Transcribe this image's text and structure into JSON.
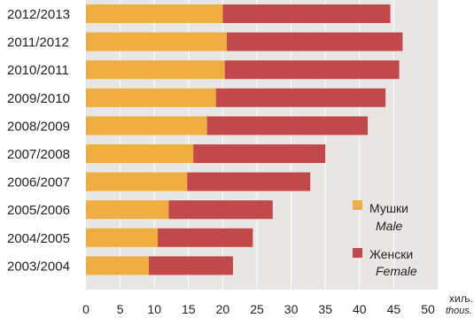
{
  "chart_data": {
    "type": "bar",
    "orientation": "horizontal",
    "stacked": true,
    "categories": [
      "2012/2013",
      "2011/2012",
      "2010/2011",
      "2009/2010",
      "2008/2009",
      "2007/2008",
      "2006/2007",
      "2005/2006",
      "2004/2005",
      "2003/2004"
    ],
    "series": [
      {
        "name": "Мушки",
        "name_en": "Male",
        "color": "#f0ad40",
        "values": [
          20.0,
          20.6,
          20.3,
          19.0,
          17.7,
          15.7,
          14.8,
          12.1,
          10.5,
          9.2
        ]
      },
      {
        "name": "Женски",
        "name_en": "Female",
        "color": "#c1494a",
        "values": [
          24.5,
          25.7,
          25.5,
          24.8,
          23.5,
          19.3,
          18.0,
          15.2,
          13.9,
          12.3
        ]
      }
    ],
    "xlim": [
      0,
      50
    ],
    "xticks": [
      "0",
      "5",
      "10",
      "15",
      "20",
      "25",
      "30",
      "35",
      "40",
      "45",
      "50"
    ],
    "unit_label": "хиљ.",
    "unit_label_en": "thous.",
    "grid": true,
    "legend_position": "bottom-right"
  }
}
